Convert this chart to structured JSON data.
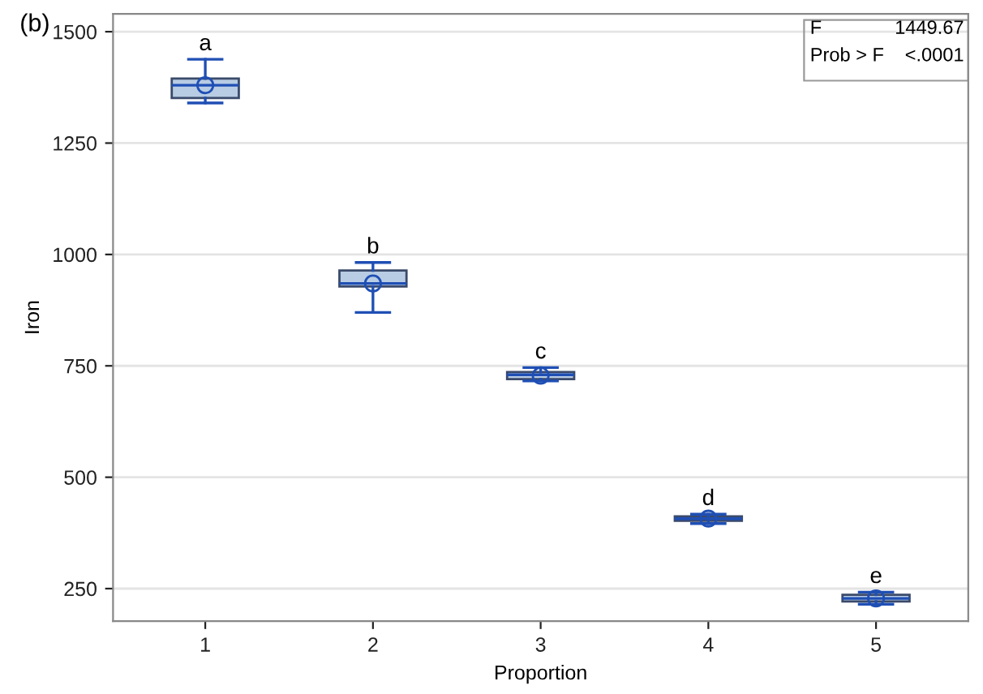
{
  "chart_data": {
    "type": "box",
    "title": "(b)",
    "xlabel": "Proportion",
    "ylabel": "Iron",
    "categories": [
      "1",
      "2",
      "3",
      "4",
      "5"
    ],
    "boxes": [
      {
        "low": 1340,
        "q1": 1351,
        "median": 1380,
        "q3": 1395,
        "high": 1438,
        "mean": 1380
      },
      {
        "low": 870,
        "q1": 928,
        "median": 935,
        "q3": 964,
        "high": 982,
        "mean": 935
      },
      {
        "low": 716,
        "q1": 720,
        "median": 730,
        "q3": 736,
        "high": 746,
        "mean": 728
      },
      {
        "low": 396,
        "q1": 402,
        "median": 407,
        "q3": 412,
        "high": 417,
        "mean": 407
      },
      {
        "low": 215,
        "q1": 221,
        "median": 228,
        "q3": 236,
        "high": 242,
        "mean": 228
      }
    ],
    "color": "#b8cce4",
    "ylim": [
      177,
      1540
    ],
    "yticks": [
      250,
      500,
      750,
      1000,
      1250,
      1500
    ],
    "grid": "y",
    "marker": "circle",
    "annotations": [
      {
        "text": "a",
        "x": "1",
        "y": 1438
      },
      {
        "text": "b",
        "x": "2",
        "y": 982
      },
      {
        "text": "c",
        "x": "3",
        "y": 746
      },
      {
        "text": "d",
        "x": "4",
        "y": 417
      },
      {
        "text": "e",
        "x": "5",
        "y": 242
      },
      "F",
      "1449.67",
      "Prob > F",
      "<.0001"
    ]
  }
}
